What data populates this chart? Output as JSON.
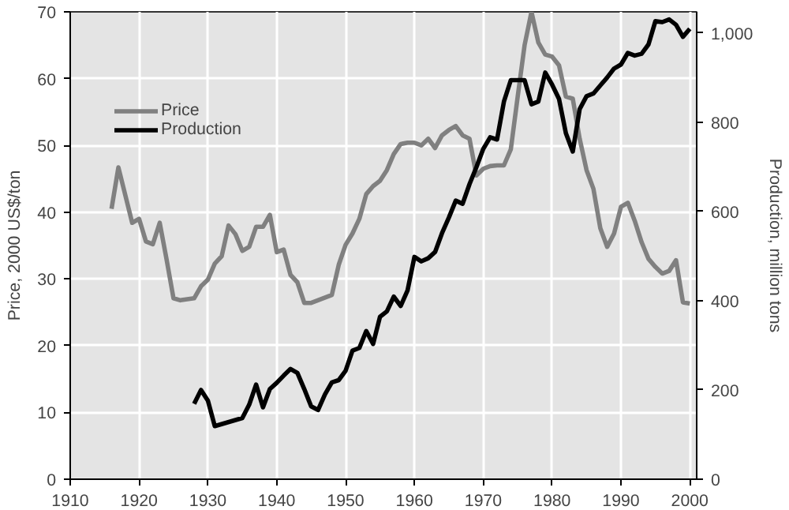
{
  "chart_data": {
    "type": "line",
    "xlabel": null,
    "ylabel": "Price, 2000 US$/ton",
    "y2label": "Production, million tons",
    "xlim": [
      1910,
      2001
    ],
    "xticks": [
      1910,
      1920,
      1930,
      1940,
      1950,
      1960,
      1970,
      1980,
      1990,
      2000
    ],
    "ylim": [
      0,
      70
    ],
    "yticks": [
      0,
      10,
      20,
      30,
      40,
      50,
      60,
      70
    ],
    "y2lim": [
      0,
      1047
    ],
    "y2ticks": [
      0,
      200,
      400,
      600,
      800,
      {
        "value": 1000,
        "label": "1,000"
      }
    ],
    "grid": true,
    "legend": "top left",
    "marker": "none",
    "line_style": "solid",
    "series": [
      {
        "name": "Price",
        "color": "#808080",
        "x": [
          1916,
          1917,
          1919,
          1920,
          1921,
          1922,
          1923,
          1924,
          1925,
          1926,
          1928,
          1929,
          1930,
          1931,
          1932,
          1933,
          1934,
          1935,
          1936,
          1937,
          1938,
          1939,
          1940,
          1941,
          1942,
          1943,
          1944,
          1945,
          1948,
          1949,
          1950,
          1951,
          1952,
          1953,
          1954,
          1955,
          1956,
          1957,
          1958,
          1959,
          1960,
          1961,
          1962,
          1963,
          1964,
          1965,
          1966,
          1967,
          1968,
          1969,
          1970,
          1971,
          1972,
          1973,
          1974,
          1975,
          1976,
          1977,
          1978,
          1979,
          1980,
          1981,
          1982,
          1983,
          1984,
          1985,
          1986,
          1987,
          1988,
          1989,
          1990,
          1991,
          1992,
          1993,
          1994,
          1995,
          1996,
          1997,
          1998,
          1999,
          2000
        ],
        "values": [
          40.5,
          46.7,
          38.4,
          39,
          35.6,
          35.2,
          38.4,
          32.9,
          27.1,
          26.8,
          27.1,
          28.9,
          29.9,
          32.3,
          33.4,
          38,
          36.7,
          34.2,
          34.8,
          37.8,
          37.8,
          39.6,
          34,
          34.4,
          30.6,
          29.5,
          26.4,
          26.4,
          27.6,
          32.1,
          35.1,
          36.8,
          39,
          42.7,
          43.9,
          44.7,
          46.3,
          48.7,
          50.2,
          50.4,
          50.4,
          50,
          51,
          49.6,
          51.5,
          52.3,
          52.9,
          51.5,
          51,
          45.5,
          46.5,
          46.9,
          47,
          47,
          49.4,
          57.3,
          65,
          70,
          65.4,
          63.6,
          63.3,
          62,
          57.3,
          57,
          51,
          46.3,
          43.5,
          37.6,
          34.8,
          36.8,
          40.8,
          41.4,
          38.7,
          35.5,
          33,
          31.8,
          30.8,
          31.2,
          32.8,
          26.5,
          26.3
        ]
      },
      {
        "name": "Production",
        "color": "#000000",
        "axis": "y2",
        "x": [
          1928,
          1929,
          1930,
          1931,
          1935,
          1936,
          1937,
          1938,
          1939,
          1940,
          1941,
          1942,
          1943,
          1944,
          1945,
          1946,
          1947,
          1948,
          1949,
          1950,
          1951,
          1952,
          1953,
          1954,
          1955,
          1956,
          1957,
          1958,
          1959,
          1960,
          1961,
          1962,
          1963,
          1964,
          1965,
          1966,
          1967,
          1968,
          1969,
          1970,
          1971,
          1972,
          1973,
          1974,
          1975,
          1976,
          1977,
          1978,
          1979,
          1980,
          1981,
          1982,
          1983,
          1984,
          1985,
          1986,
          1987,
          1988,
          1989,
          1990,
          1991,
          1992,
          1993,
          1994,
          1995,
          1996,
          1997,
          1998,
          1999,
          2000
        ],
        "values": [
          169,
          200,
          176,
          119,
          137,
          167,
          212,
          161,
          202,
          216,
          232,
          247,
          238,
          202,
          163,
          155,
          190,
          217,
          222,
          243,
          288,
          294,
          332,
          303,
          364,
          376,
          409,
          388,
          423,
          498,
          488,
          495,
          509,
          551,
          586,
          624,
          617,
          661,
          699,
          740,
          766,
          761,
          846,
          894,
          894,
          894,
          840,
          846,
          911,
          884,
          852,
          775,
          734,
          829,
          858,
          864,
          882,
          900,
          920,
          929,
          955,
          949,
          953,
          974,
          1026,
          1024,
          1030,
          1018,
          991,
          1009
        ]
      }
    ]
  }
}
